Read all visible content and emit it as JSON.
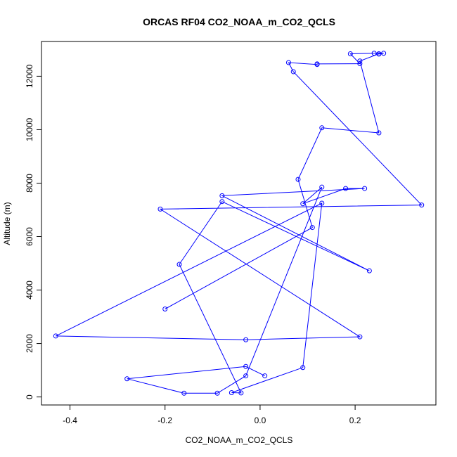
{
  "chart_data": {
    "type": "scatter",
    "title": "ORCAS RF04 CO2_NOAA_m_CO2_QCLS",
    "xlabel": "CO2_NOAA_m_CO2_QCLS",
    "ylabel": "Altitude (m)",
    "xlim": [
      -0.46,
      0.37
    ],
    "ylim": [
      -300,
      13300
    ],
    "xticks": [
      -0.4,
      -0.2,
      0.0,
      0.2
    ],
    "xtick_labels": [
      "-0.4",
      "-0.2",
      "0.0",
      "0.2"
    ],
    "yticks": [
      0,
      2000,
      4000,
      6000,
      8000,
      10000,
      12000
    ],
    "ytick_labels": [
      "0",
      "2000",
      "4000",
      "6000",
      "8000",
      "10000",
      "12000"
    ],
    "grid": false,
    "series": [
      {
        "color": "#0000ff",
        "x": [
          0.01,
          -0.03,
          -0.28,
          -0.16,
          -0.09,
          -0.03,
          0.13,
          0.09,
          0.18,
          0.22,
          -0.08,
          0.23,
          -0.08,
          -0.17,
          -0.04,
          -0.06,
          0.09,
          0.13,
          -0.43,
          -0.03,
          0.21,
          -0.21,
          0.34,
          0.07,
          0.06,
          0.12,
          0.12,
          0.21,
          0.19,
          0.24,
          0.26,
          0.25,
          0.25,
          0.21,
          0.25,
          0.13,
          0.08,
          0.11,
          -0.2
        ],
        "y": [
          790,
          1140,
          680,
          140,
          140,
          790,
          7850,
          7230,
          7800,
          7800,
          7530,
          4720,
          7310,
          4960,
          150,
          160,
          1100,
          7250,
          2280,
          2140,
          2250,
          7030,
          7180,
          12170,
          12510,
          12440,
          12460,
          12470,
          12840,
          12860,
          12860,
          12830,
          12840,
          12570,
          9880,
          10070,
          8140,
          6340,
          3290
        ]
      }
    ]
  }
}
